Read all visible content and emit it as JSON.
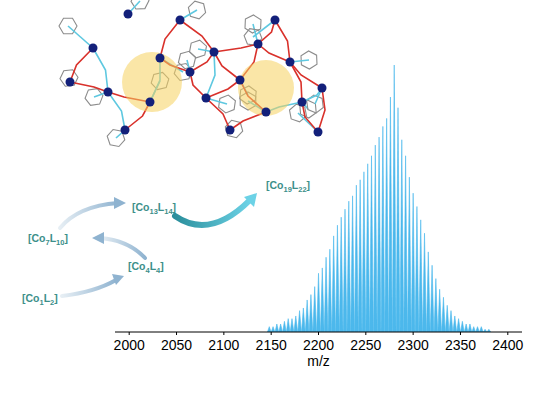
{
  "scheme": {
    "steps": [
      "[Co1L2]",
      "[Co4L4]",
      "[Co7L10]",
      "[Co13L14]",
      "[Co19L22]"
    ]
  },
  "chart_data": {
    "type": "stem",
    "x_label": "m/z",
    "color": "#4cb8ec",
    "x": [
      2148,
      2152,
      2156,
      2160,
      2164,
      2168,
      2172,
      2176,
      2180,
      2184,
      2188,
      2192,
      2196,
      2200,
      2204,
      2208,
      2212,
      2216,
      2220,
      2224,
      2228,
      2232,
      2236,
      2240,
      2244,
      2248,
      2252,
      2256,
      2260,
      2264,
      2268,
      2272,
      2276,
      2280,
      2284,
      2288,
      2292,
      2296,
      2300,
      2304,
      2308,
      2312,
      2316,
      2320,
      2324,
      2328,
      2332,
      2336,
      2340,
      2344,
      2348,
      2352,
      2356,
      2360,
      2364,
      2368,
      2372,
      2376,
      2380
    ],
    "values": [
      2,
      2,
      3,
      3,
      4,
      5,
      5,
      6,
      8,
      9,
      12,
      14,
      17,
      22,
      24,
      28,
      31,
      36,
      40,
      43,
      46,
      49,
      51,
      55,
      57,
      60,
      63,
      66,
      70,
      73,
      77,
      80,
      88,
      100,
      84,
      72,
      66,
      58,
      52,
      47,
      42,
      37,
      30,
      25,
      20,
      16,
      13,
      10,
      8,
      6,
      5,
      4,
      3,
      3,
      2,
      2,
      2,
      1,
      1
    ],
    "xlim": [
      1985,
      2415
    ],
    "xticks": [
      2000,
      2050,
      2100,
      2150,
      2200,
      2250,
      2300,
      2350,
      2400
    ],
    "ylim": [
      0,
      100
    ],
    "tick_labels": "x",
    "grid": false
  }
}
